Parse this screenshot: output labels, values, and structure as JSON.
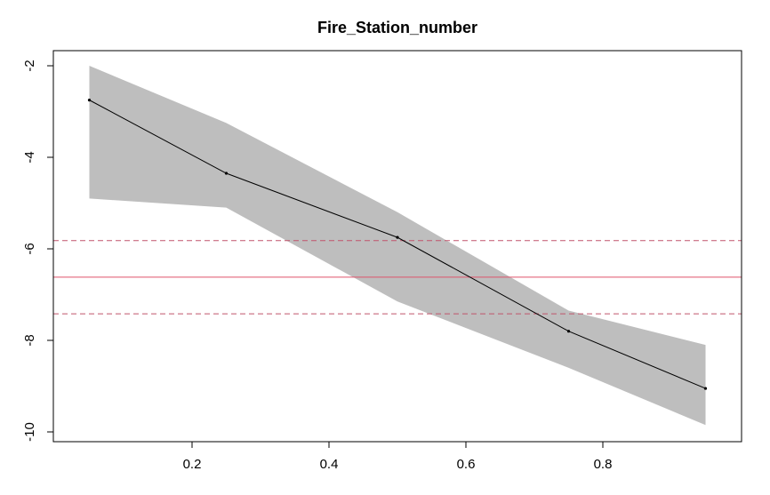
{
  "chart_data": {
    "type": "line",
    "title": "Fire_Station_number",
    "xlabel": "",
    "ylabel": "",
    "xlim": [
      0.0,
      1.0
    ],
    "ylim": [
      -10.0,
      -2.0
    ],
    "x_ticks": [
      0.2,
      0.4,
      0.6,
      0.8
    ],
    "y_ticks": [
      -2,
      -4,
      -6,
      -8,
      -10
    ],
    "x_tick_labels": [
      "0.2",
      "0.4",
      "0.6",
      "0.8"
    ],
    "y_tick_labels": [
      "-2",
      "-4",
      "-6",
      "-8",
      "-10"
    ],
    "grid": false,
    "series": [
      {
        "x": [
          0.05,
          0.25,
          0.5,
          0.75,
          0.95
        ],
        "y": [
          -2.75,
          -4.35,
          -5.75,
          -7.8,
          -9.05
        ],
        "lower": [
          -4.9,
          -5.1,
          -7.15,
          -8.6,
          -9.85
        ],
        "upper": [
          -2.0,
          -3.25,
          -5.2,
          -7.35,
          -8.1
        ],
        "color": "#000000",
        "band_color": "#bebebe"
      }
    ],
    "reference_lines": [
      {
        "y": -6.62,
        "style": "solid",
        "color": "#df536b"
      },
      {
        "y": -5.82,
        "style": "dashed",
        "color": "#c0546b"
      },
      {
        "y": -7.42,
        "style": "dashed",
        "color": "#c0546b"
      }
    ]
  }
}
